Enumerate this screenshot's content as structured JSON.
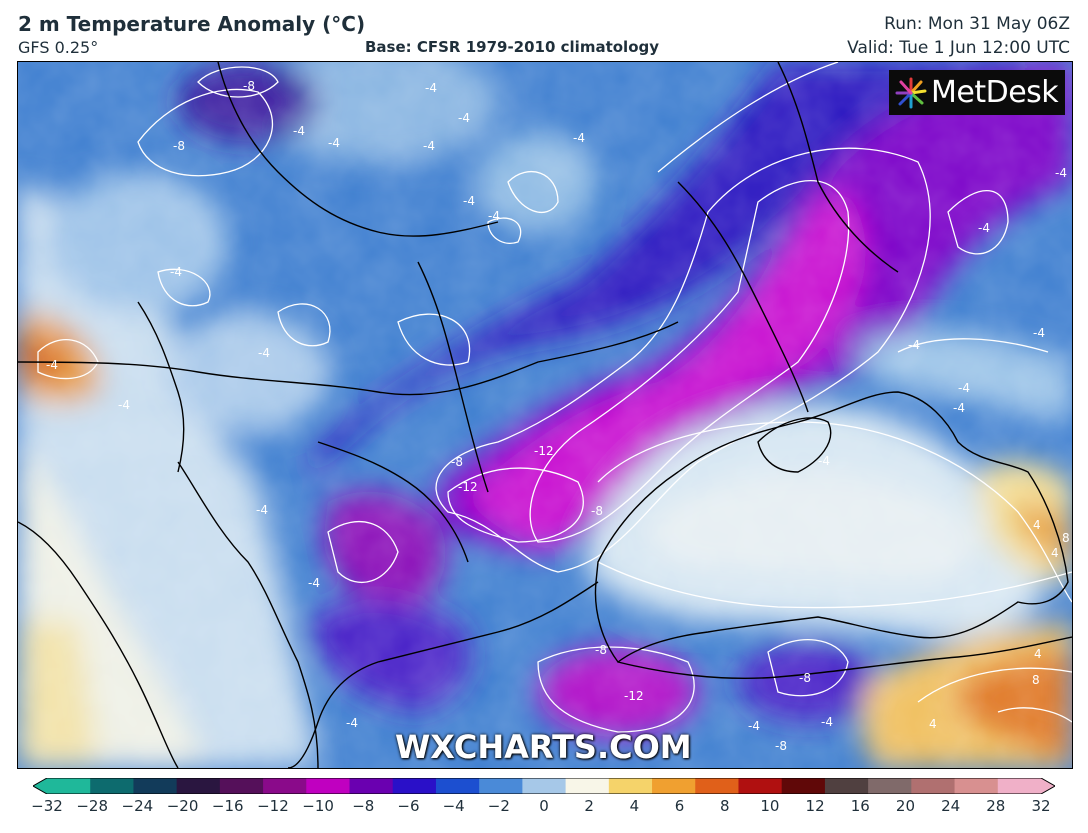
{
  "header": {
    "title": "2 m Temperature Anomaly (°C)",
    "model": "GFS 0.25°",
    "base": "Base: CFSR 1979-2010 climatology",
    "run": "Run: Mon 31 May 06Z",
    "valid": "Valid: Tue 1 Jun 12:00 UTC"
  },
  "branding": {
    "logo": "MetDesk",
    "watermark": "WXCHARTS.COM"
  },
  "colorbar": {
    "ticks": [
      "−32",
      "−28",
      "−24",
      "−20",
      "−16",
      "−12",
      "−10",
      "−8",
      "−6",
      "−4",
      "−2",
      "0",
      "2",
      "4",
      "6",
      "8",
      "10",
      "12",
      "16",
      "20",
      "24",
      "28",
      "32"
    ],
    "colors": [
      "#1fb89a",
      "#0d6b6e",
      "#123b5a",
      "#2a1640",
      "#55105a",
      "#8a0a8a",
      "#c000c0",
      "#6a00b0",
      "#2a10c8",
      "#1c4fd0",
      "#4a8ad8",
      "#a6c8e8",
      "#f8f6e8",
      "#f5d36a",
      "#f0a030",
      "#e0601a",
      "#b01010",
      "#600808",
      "#504040",
      "#806a6a",
      "#b07070",
      "#d89090",
      "#f0b0c8"
    ]
  },
  "contour_labels": [
    {
      "text": "-8"
    },
    {
      "text": "-8"
    },
    {
      "text": "-4"
    },
    {
      "text": "-4"
    },
    {
      "text": "-4"
    },
    {
      "text": "-4"
    },
    {
      "text": "-4"
    },
    {
      "text": "-4"
    },
    {
      "text": "-4"
    },
    {
      "text": "-4"
    },
    {
      "text": "-4"
    },
    {
      "text": "-4"
    },
    {
      "text": "-4"
    },
    {
      "text": "-4"
    },
    {
      "text": "-4"
    },
    {
      "text": "-4"
    },
    {
      "text": "-4"
    },
    {
      "text": "-4"
    },
    {
      "text": "-8"
    },
    {
      "text": "-12"
    },
    {
      "text": "-12"
    },
    {
      "text": "-12"
    },
    {
      "text": "-8"
    },
    {
      "text": "-8"
    },
    {
      "text": "-8"
    },
    {
      "text": "-4"
    },
    {
      "text": "-4"
    },
    {
      "text": "-4"
    },
    {
      "text": "-4"
    },
    {
      "text": "-4"
    },
    {
      "text": "-4"
    },
    {
      "text": "4"
    },
    {
      "text": "4"
    },
    {
      "text": "8"
    },
    {
      "text": "4"
    },
    {
      "text": "8"
    },
    {
      "text": "4"
    },
    {
      "text": "-4"
    },
    {
      "text": "-8"
    },
    {
      "text": "-4"
    }
  ],
  "colors": {
    "text": "#1f2f3a",
    "logo_bg": "#0b0b0b",
    "contour": "#ffffff",
    "border": "#000000"
  }
}
